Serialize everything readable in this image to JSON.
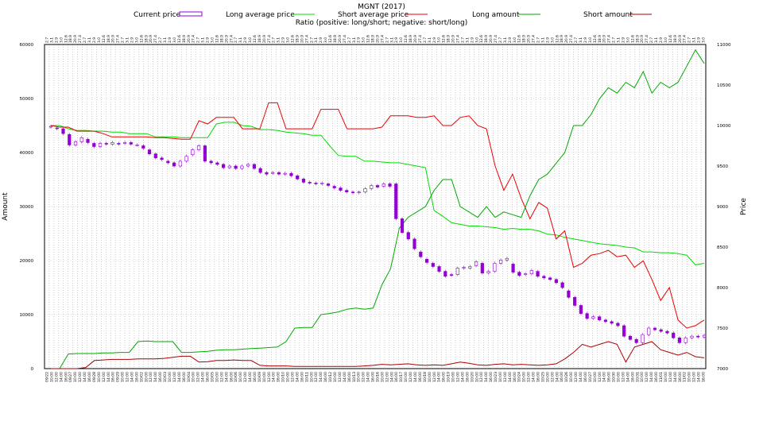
{
  "chart_data": {
    "type": "line",
    "title": "MGNT (2017)",
    "subtitle": "Ratio (positive: long/short; negative: short/long)",
    "ylabel_left": "Amount",
    "ylabel_right": "Price",
    "ylim_left": [
      0,
      60000
    ],
    "ylim_right": [
      7000,
      11000
    ],
    "yticks_left": [
      "0",
      "10000",
      "20000",
      "30000",
      "40000",
      "50000",
      "60000"
    ],
    "yticks_right": [
      "7000",
      "7500",
      "8000",
      "8500",
      "9000",
      "9500",
      "10000",
      "10500",
      "11000"
    ],
    "grid": true,
    "legend_placement": "top",
    "legend": [
      {
        "name": "Current price",
        "color": "#9400d3",
        "style": "box"
      },
      {
        "name": "Long average price",
        "color": "#00dd00",
        "style": "line"
      },
      {
        "name": "Short average price",
        "color": "#ee0000",
        "style": "line"
      },
      {
        "name": "Long amount",
        "color": "#00aa00",
        "style": "line"
      },
      {
        "name": "Short amount",
        "color": "#aa0000",
        "style": "line"
      }
    ],
    "date_ticks": [
      "09/22",
      "09/27",
      "09/28",
      "09/29",
      "10/02",
      "10/03",
      "10/04",
      "10/05",
      "10/06",
      "10/09",
      "10/10",
      "10/11",
      "10/12",
      "10/13",
      "10/16",
      "10/17",
      "10/18",
      "10/19",
      "10/20",
      "10/23",
      "10/24",
      "10/25",
      "10/26",
      "10/27",
      "10/30",
      "10/31",
      "11/01",
      "11/02",
      "11/03",
      "11/07"
    ],
    "time_ticks": [
      "18:00",
      "10:00",
      "12:00",
      "14:00",
      "16:00"
    ],
    "ratio_labels": [
      "2.7",
      "3.1",
      "2.9",
      "3.0",
      "12.6",
      "18.9",
      "20.9",
      "27.4"
    ],
    "series": [
      {
        "name": "Long average price",
        "values": [
          10000,
          10000,
          9960,
          9940,
          9940,
          9930,
          9930,
          9920,
          9920,
          9900,
          9900,
          9900,
          9860,
          9860,
          9860,
          9850,
          9850,
          9850,
          9850,
          10020,
          10040,
          10040,
          10000,
          9990,
          9950,
          9950,
          9940,
          9920,
          9910,
          9900,
          9880,
          9880,
          9750,
          9630,
          9620,
          9620,
          9560,
          9560,
          9550,
          9540,
          9540,
          9520,
          9500,
          9480,
          8950,
          8880,
          8800,
          8780,
          8760,
          8760,
          8750,
          8740,
          8720,
          8730,
          8720,
          8720,
          8700,
          8660,
          8650,
          8620,
          8600,
          8580,
          8560,
          8540,
          8530,
          8520,
          8500,
          8490,
          8440,
          8440,
          8430,
          8430,
          8420,
          8400,
          8280,
          8300
        ]
      },
      {
        "name": "Short average price",
        "values": [
          10000,
          9980,
          9980,
          9930,
          9930,
          9930,
          9900,
          9860,
          9860,
          9860,
          9860,
          9860,
          9850,
          9850,
          9840,
          9830,
          9830,
          10060,
          10020,
          10100,
          10100,
          10100,
          9960,
          9960,
          9960,
          10280,
          10280,
          9960,
          9960,
          9960,
          9960,
          10200,
          10200,
          10200,
          9960,
          9960,
          9960,
          9960,
          9980,
          10120,
          10120,
          10120,
          10100,
          10100,
          10120,
          10000,
          10000,
          10100,
          10120,
          10000,
          9960,
          9500,
          9200,
          9400,
          9100,
          8850,
          9050,
          8980,
          8600,
          8700,
          8250,
          8300,
          8400,
          8420,
          8460,
          8380,
          8400,
          8250,
          8330,
          8100,
          7840,
          8000,
          7600,
          7500,
          7530,
          7600
        ]
      },
      {
        "name": "Long amount",
        "values": [
          0,
          0,
          2700,
          2800,
          2800,
          2800,
          2900,
          2900,
          3000,
          3000,
          5000,
          5100,
          5000,
          5000,
          5000,
          3000,
          3000,
          3100,
          3200,
          3400,
          3500,
          3500,
          3600,
          3700,
          3800,
          3900,
          4000,
          5000,
          7500,
          7600,
          7600,
          10000,
          10200,
          10500,
          11000,
          11200,
          11000,
          11200,
          15500,
          18500,
          26000,
          28000,
          29000,
          30000,
          33000,
          35000,
          35000,
          30000,
          29000,
          28000,
          30000,
          28000,
          29000,
          28500,
          28000,
          32000,
          35000,
          36000,
          38000,
          40000,
          45000,
          45000,
          47000,
          50000,
          52000,
          51000,
          53000,
          52000,
          55000,
          51000,
          53000,
          52000,
          53000,
          56000,
          59000,
          56500
        ]
      },
      {
        "name": "Short amount",
        "values": [
          0,
          0,
          0,
          0,
          200,
          1500,
          1600,
          1700,
          1700,
          1700,
          1800,
          1800,
          1800,
          1900,
          2100,
          2300,
          2300,
          1200,
          1300,
          1500,
          1500,
          1600,
          1500,
          1500,
          600,
          500,
          500,
          500,
          400,
          400,
          400,
          400,
          400,
          400,
          400,
          400,
          500,
          600,
          800,
          700,
          800,
          900,
          700,
          600,
          700,
          600,
          900,
          1200,
          1000,
          700,
          600,
          800,
          900,
          700,
          800,
          700,
          600,
          700,
          900,
          1800,
          3000,
          4500,
          4000,
          4500,
          5000,
          4500,
          1200,
          4000,
          4500,
          5000,
          3500,
          3000,
          2500,
          3000,
          2200,
          2000
        ]
      }
    ],
    "candles": [
      {
        "o": 9980,
        "c": 9990
      },
      {
        "o": 9970,
        "c": 9960
      },
      {
        "o": 9960,
        "c": 9900
      },
      {
        "o": 9890,
        "c": 9760
      },
      {
        "o": 9760,
        "c": 9800
      },
      {
        "o": 9800,
        "c": 9850
      },
      {
        "o": 9830,
        "c": 9790
      },
      {
        "o": 9780,
        "c": 9740
      },
      {
        "o": 9740,
        "c": 9780
      },
      {
        "o": 9780,
        "c": 9770
      },
      {
        "o": 9770,
        "c": 9790
      },
      {
        "o": 9780,
        "c": 9770
      },
      {
        "o": 9780,
        "c": 9790
      },
      {
        "o": 9790,
        "c": 9770
      },
      {
        "o": 9760,
        "c": 9760
      },
      {
        "o": 9750,
        "c": 9720
      },
      {
        "o": 9700,
        "c": 9650
      },
      {
        "o": 9650,
        "c": 9600
      },
      {
        "o": 9600,
        "c": 9580
      },
      {
        "o": 9560,
        "c": 9540
      },
      {
        "o": 9540,
        "c": 9500
      },
      {
        "o": 9500,
        "c": 9560
      },
      {
        "o": 9560,
        "c": 9620
      },
      {
        "o": 9640,
        "c": 9700
      },
      {
        "o": 9700,
        "c": 9750
      },
      {
        "o": 9750,
        "c": 9560
      },
      {
        "o": 9560,
        "c": 9540
      },
      {
        "o": 9540,
        "c": 9520
      },
      {
        "o": 9520,
        "c": 9480
      },
      {
        "o": 9480,
        "c": 9500
      },
      {
        "o": 9500,
        "c": 9470
      },
      {
        "o": 9470,
        "c": 9500
      },
      {
        "o": 9500,
        "c": 9520
      },
      {
        "o": 9520,
        "c": 9470
      },
      {
        "o": 9470,
        "c": 9420
      },
      {
        "o": 9420,
        "c": 9400
      },
      {
        "o": 9410,
        "c": 9420
      },
      {
        "o": 9420,
        "c": 9400
      },
      {
        "o": 9400,
        "c": 9410
      },
      {
        "o": 9410,
        "c": 9380
      },
      {
        "o": 9380,
        "c": 9340
      },
      {
        "o": 9340,
        "c": 9300
      },
      {
        "o": 9300,
        "c": 9290
      },
      {
        "o": 9290,
        "c": 9280
      },
      {
        "o": 9280,
        "c": 9290
      },
      {
        "o": 9280,
        "c": 9260
      },
      {
        "o": 9250,
        "c": 9230
      },
      {
        "o": 9230,
        "c": 9200
      },
      {
        "o": 9200,
        "c": 9180
      },
      {
        "o": 9180,
        "c": 9170
      },
      {
        "o": 9170,
        "c": 9180
      },
      {
        "o": 9180,
        "c": 9220
      },
      {
        "o": 9220,
        "c": 9260
      },
      {
        "o": 9260,
        "c": 9240
      },
      {
        "o": 9250,
        "c": 9280
      },
      {
        "o": 9280,
        "c": 9250
      },
      {
        "o": 9280,
        "c": 8850
      },
      {
        "o": 8850,
        "c": 8680
      },
      {
        "o": 8680,
        "c": 8600
      },
      {
        "o": 8600,
        "c": 8480
      },
      {
        "o": 8440,
        "c": 8380
      },
      {
        "o": 8350,
        "c": 8310
      },
      {
        "o": 8300,
        "c": 8260
      },
      {
        "o": 8260,
        "c": 8200
      },
      {
        "o": 8200,
        "c": 8140
      },
      {
        "o": 8160,
        "c": 8150
      },
      {
        "o": 8160,
        "c": 8240
      },
      {
        "o": 8240,
        "c": 8250
      },
      {
        "o": 8240,
        "c": 8260
      },
      {
        "o": 8270,
        "c": 8320
      },
      {
        "o": 8300,
        "c": 8180
      },
      {
        "o": 8180,
        "c": 8200
      },
      {
        "o": 8200,
        "c": 8300
      },
      {
        "o": 8300,
        "c": 8340
      },
      {
        "o": 8340,
        "c": 8360
      },
      {
        "o": 8290,
        "c": 8190
      },
      {
        "o": 8190,
        "c": 8150
      },
      {
        "o": 8160,
        "c": 8170
      },
      {
        "o": 8170,
        "c": 8210
      },
      {
        "o": 8200,
        "c": 8140
      },
      {
        "o": 8140,
        "c": 8120
      },
      {
        "o": 8120,
        "c": 8100
      },
      {
        "o": 8100,
        "c": 8060
      },
      {
        "o": 8060,
        "c": 8000
      },
      {
        "o": 7960,
        "c": 7880
      },
      {
        "o": 7880,
        "c": 7780
      },
      {
        "o": 7780,
        "c": 7680
      },
      {
        "o": 7680,
        "c": 7620
      },
      {
        "o": 7620,
        "c": 7640
      },
      {
        "o": 7640,
        "c": 7600
      },
      {
        "o": 7600,
        "c": 7580
      },
      {
        "o": 7580,
        "c": 7560
      },
      {
        "o": 7560,
        "c": 7530
      },
      {
        "o": 7530,
        "c": 7400
      },
      {
        "o": 7400,
        "c": 7360
      },
      {
        "o": 7360,
        "c": 7320
      },
      {
        "o": 7320,
        "c": 7420
      },
      {
        "o": 7420,
        "c": 7500
      },
      {
        "o": 7500,
        "c": 7480
      },
      {
        "o": 7480,
        "c": 7460
      },
      {
        "o": 7460,
        "c": 7440
      },
      {
        "o": 7440,
        "c": 7380
      },
      {
        "o": 7380,
        "c": 7320
      },
      {
        "o": 7320,
        "c": 7380
      },
      {
        "o": 7380,
        "c": 7400
      },
      {
        "o": 7400,
        "c": 7390
      },
      {
        "o": 7390,
        "c": 7410
      }
    ]
  }
}
